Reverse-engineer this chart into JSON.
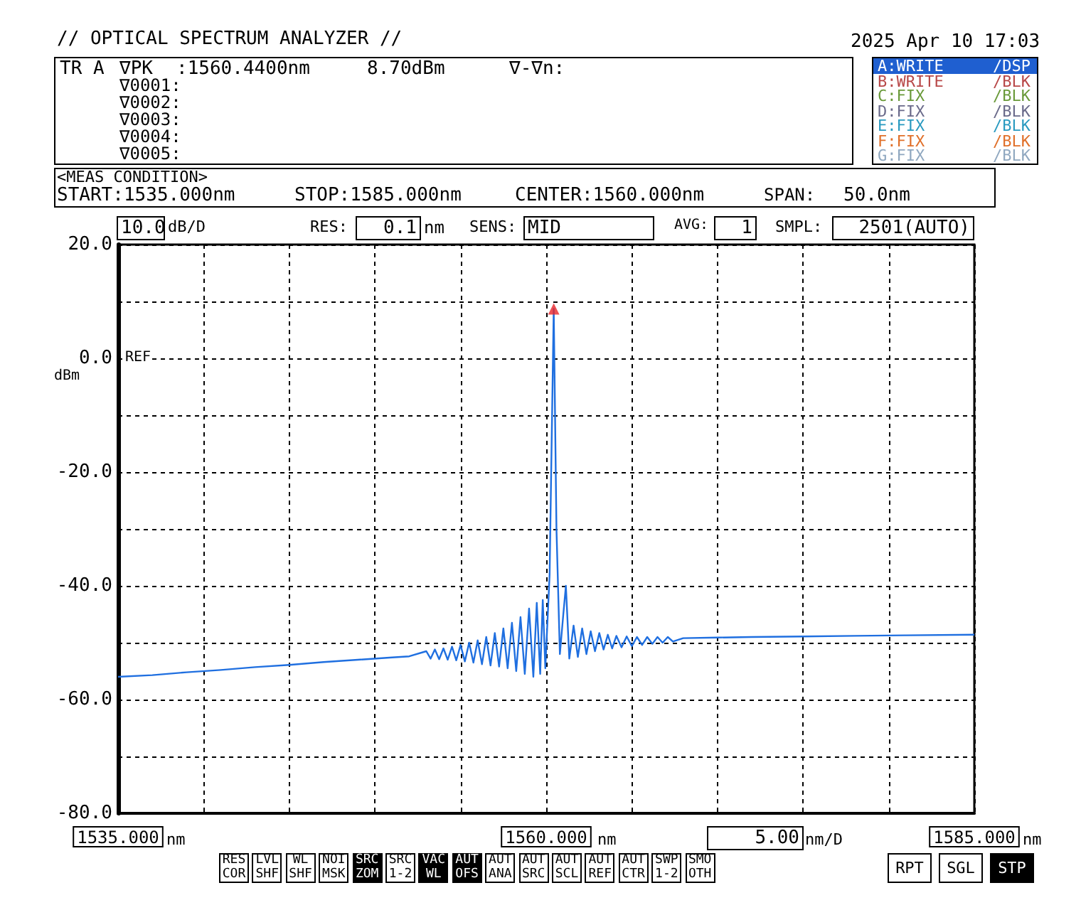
{
  "chart_data": {
    "type": "line",
    "x": [
      1535,
      1537,
      1539,
      1541,
      1543,
      1545,
      1547,
      1549,
      1551,
      1552,
      1553,
      1553.25,
      1553.5,
      1553.75,
      1554,
      1554.25,
      1554.5,
      1554.75,
      1555,
      1555.25,
      1555.5,
      1555.75,
      1556,
      1556.25,
      1556.5,
      1556.75,
      1557,
      1557.25,
      1557.5,
      1557.75,
      1558,
      1558.25,
      1558.5,
      1558.75,
      1559,
      1559.25,
      1559.45,
      1559.65,
      1559.8,
      1559.95,
      1560.2,
      1560.44,
      1560.6,
      1560.8,
      1561,
      1561.15,
      1561.35,
      1561.6,
      1561.85,
      1562.1,
      1562.35,
      1562.6,
      1562.85,
      1563.1,
      1563.35,
      1563.6,
      1563.85,
      1564.1,
      1564.4,
      1564.7,
      1565,
      1565.3,
      1565.6,
      1565.9,
      1566.2,
      1566.5,
      1566.8,
      1567.1,
      1567.4,
      1568,
      1570,
      1572,
      1575,
      1578,
      1581,
      1585
    ],
    "series": [
      {
        "type": "line",
        "color": "#1f6fe0",
        "marker": "none",
        "values": [
          -56,
          -55.7,
          -55.2,
          -54.8,
          -54.3,
          -53.9,
          -53.4,
          -53,
          -52.6,
          -52.4,
          -51.5,
          -52.8,
          -51.2,
          -52.9,
          -51,
          -53,
          -50.7,
          -53.1,
          -50.4,
          -53.3,
          -50,
          -53.5,
          -49.6,
          -53.8,
          -49,
          -54,
          -48.3,
          -54.2,
          -47.5,
          -54.5,
          -46.5,
          -55,
          -45.5,
          -55.5,
          -44,
          -56,
          -43,
          -55.5,
          -42.5,
          -54.5,
          -38,
          8.7,
          -30,
          -52,
          -45,
          -40,
          -52.8,
          -47,
          -52.5,
          -47.5,
          -52,
          -48,
          -51.5,
          -48.3,
          -51.2,
          -48.6,
          -51,
          -48.8,
          -50.8,
          -48.9,
          -50.6,
          -49,
          -50.4,
          -49,
          -50.2,
          -49,
          -50,
          -49,
          -49.8,
          -49.2,
          -49.1,
          -49,
          -48.9,
          -48.8,
          -48.7,
          -48.6
        ]
      },
      {
        "type": "scatter",
        "color": "#e8262a",
        "marker": "triangle",
        "x": [
          1560.44
        ],
        "values": [
          8.7
        ]
      }
    ],
    "xlim": [
      1535,
      1585
    ],
    "xticks": [
      {
        "value": 1535,
        "label": "1535.000"
      },
      {
        "value": 1540,
        "label": null
      },
      {
        "value": 1545,
        "label": null
      },
      {
        "value": 1550,
        "label": null
      },
      {
        "value": 1555,
        "label": null
      },
      {
        "value": 1560,
        "label": "1560.000"
      },
      {
        "value": 1565,
        "label": null
      },
      {
        "value": 1570,
        "label": null
      },
      {
        "value": 1575,
        "label": null
      },
      {
        "value": 1580,
        "label": null
      },
      {
        "value": 1585,
        "label": "1585.000"
      }
    ],
    "ylim": [
      -80,
      20
    ],
    "yticks": [
      {
        "value": -80,
        "label": "-80.0"
      },
      {
        "value": -70,
        "label": null
      },
      {
        "value": -60,
        "label": "-60.0"
      },
      {
        "value": -50,
        "label": null
      },
      {
        "value": -40,
        "label": "-40.0"
      },
      {
        "value": -30,
        "label": null
      },
      {
        "value": -20,
        "label": "-20.0"
      },
      {
        "value": -10,
        "label": null
      },
      {
        "value": 0,
        "label": "0.0"
      },
      {
        "value": 10,
        "label": null
      },
      {
        "value": 20,
        "label": "20.0"
      }
    ],
    "grid": true,
    "annotations": [
      "// OPTICAL SPECTRUM ANALYZER //",
      "2025 Apr 10 17:03",
      "TR A",
      "∇PK",
      ":1560.4400nm",
      "8.70dBm",
      "∇-∇n:",
      "∇0001:",
      "∇0002:",
      "∇0003:",
      "∇0004:",
      "∇0005:",
      "A:WRITE",
      "/DSP",
      "B:WRITE",
      "/BLK",
      "C:FIX",
      "/BLK",
      "D:FIX",
      "/BLK",
      "E:FIX",
      "/BLK",
      "F:FIX",
      "/BLK",
      "G:FIX",
      "/BLK",
      "<MEAS CONDITION>",
      "START:1535.000nm",
      "STOP:1585.000nm",
      "CENTER:1560.000nm",
      "SPAN:",
      "50.0nm",
      "10.0",
      "dB/D",
      "RES:",
      "0.1",
      "nm",
      "SENS:",
      "MID",
      "AVG:",
      "1",
      "SMPL:",
      "2501(AUTO)",
      "REF",
      "dBm",
      "nm",
      "nm",
      "5.00",
      "nm/D",
      "nm",
      "RES\nCOR",
      "LVL\nSHF",
      "WL\nSHF",
      "NOI\nMSK",
      "SRC\nZOM",
      "SRC\n1-2",
      "VAC\nWL",
      "AUT\nOFS",
      "AUT\nANA",
      "AUT\nSRC",
      "AUT\nSCL",
      "AUT\nREF",
      "AUT\nCTR",
      "SWP\n1-2",
      "SMO\nOTH",
      "RPT",
      "SGL",
      "STP"
    ]
  }
}
